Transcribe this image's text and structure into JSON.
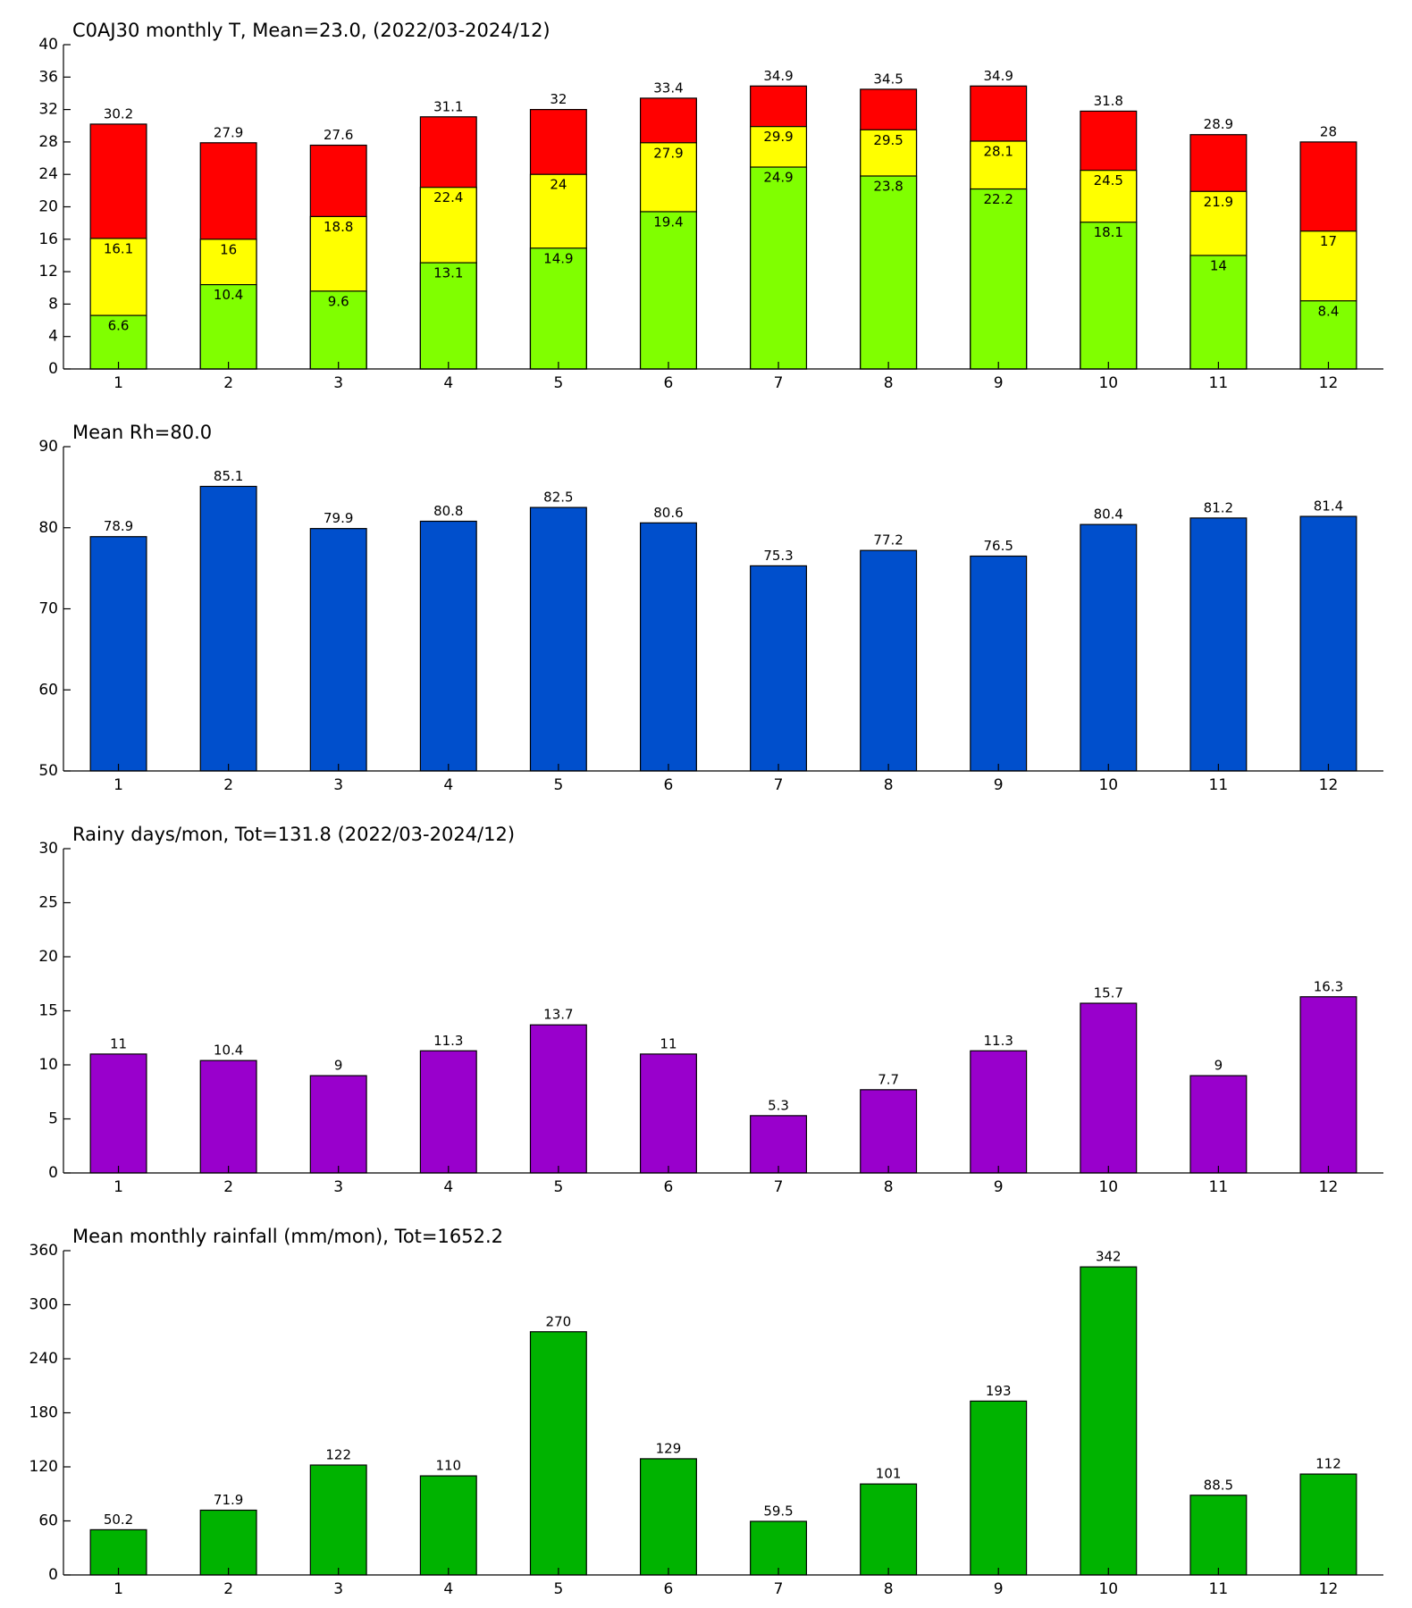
{
  "chart_data": [
    {
      "type": "bar",
      "barmode": "overlay",
      "title": "C0AJ30 monthly T, Mean=23.0, (2022/03-2024/12)",
      "categories": [
        "1",
        "2",
        "3",
        "4",
        "5",
        "6",
        "7",
        "8",
        "9",
        "10",
        "11",
        "12"
      ],
      "series": [
        {
          "color": "#ff0000",
          "values": [
            30.2,
            27.9,
            27.6,
            31.1,
            32,
            33.4,
            34.9,
            34.5,
            34.9,
            31.8,
            28.9,
            28
          ]
        },
        {
          "color": "#ffff00",
          "values": [
            16.1,
            16,
            18.8,
            22.4,
            24,
            27.9,
            29.9,
            29.5,
            28.1,
            24.5,
            21.9,
            17
          ]
        },
        {
          "color": "#80ff00",
          "values": [
            6.6,
            10.4,
            9.6,
            13.1,
            14.9,
            19.4,
            24.9,
            23.8,
            22.2,
            18.1,
            14,
            8.4
          ]
        }
      ],
      "ylim": [
        0,
        40
      ],
      "yticks": [
        0,
        4,
        8,
        12,
        16,
        20,
        24,
        28,
        32,
        36,
        40
      ]
    },
    {
      "type": "bar",
      "title": "Mean Rh=80.0",
      "categories": [
        "1",
        "2",
        "3",
        "4",
        "5",
        "6",
        "7",
        "8",
        "9",
        "10",
        "11",
        "12"
      ],
      "values": [
        78.9,
        85.1,
        79.9,
        80.8,
        82.5,
        80.6,
        75.3,
        77.2,
        76.5,
        80.4,
        81.2,
        81.4
      ],
      "color": "#004fcc",
      "ylim": [
        50,
        90
      ],
      "yticks": [
        50,
        60,
        70,
        80,
        90
      ]
    },
    {
      "type": "bar",
      "title": "Rainy days/mon, Tot=131.8 (2022/03-2024/12)",
      "categories": [
        "1",
        "2",
        "3",
        "4",
        "5",
        "6",
        "7",
        "8",
        "9",
        "10",
        "11",
        "12"
      ],
      "values": [
        11,
        10.4,
        9,
        11.3,
        13.7,
        11,
        5.3,
        7.7,
        11.3,
        15.7,
        9,
        16.3
      ],
      "color": "#9900cc",
      "ylim": [
        0,
        30
      ],
      "yticks": [
        0,
        5,
        10,
        15,
        20,
        25,
        30
      ]
    },
    {
      "type": "bar",
      "title": "Mean monthly rainfall (mm/mon), Tot=1652.2",
      "categories": [
        "1",
        "2",
        "3",
        "4",
        "5",
        "6",
        "7",
        "8",
        "9",
        "10",
        "11",
        "12"
      ],
      "values": [
        50.2,
        71.9,
        122,
        110,
        270,
        129,
        59.5,
        101,
        193,
        342,
        88.5,
        112
      ],
      "color": "#00b300",
      "ylim": [
        0,
        360
      ],
      "yticks": [
        0,
        60,
        120,
        180,
        240,
        300,
        360
      ]
    }
  ]
}
